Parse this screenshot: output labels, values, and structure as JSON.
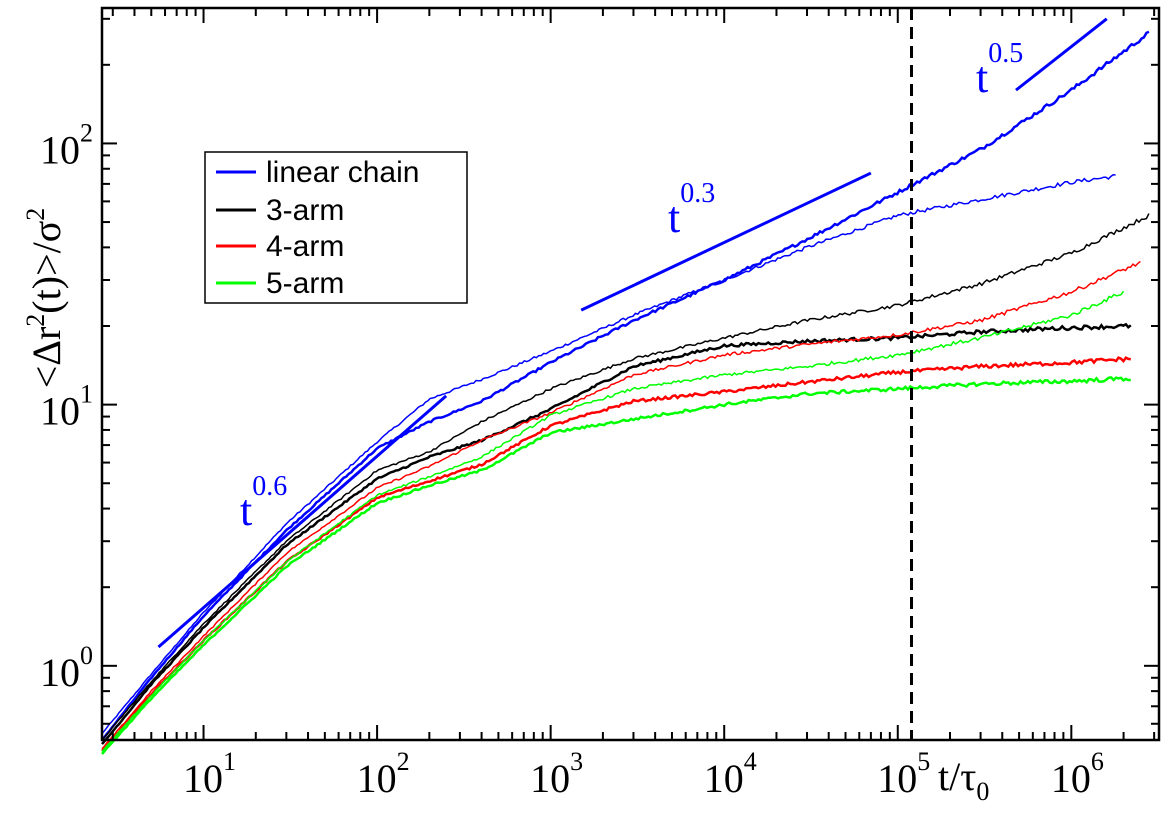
{
  "chart_data": {
    "type": "line",
    "xscale": "log",
    "yscale": "log",
    "xlim": [
      2.6,
      3200000
    ],
    "ylim": [
      0.52,
      330
    ],
    "ylabel": "<Δr²(t)>/σ²",
    "xlabel": "t/τ₀",
    "x_ticks": [
      {
        "base": "10",
        "exp": "1",
        "value": 10
      },
      {
        "base": "10",
        "exp": "2",
        "value": 100
      },
      {
        "base": "10",
        "exp": "3",
        "value": 1000
      },
      {
        "base": "10",
        "exp": "4",
        "value": 10000
      },
      {
        "base": "10",
        "exp": "5",
        "value": 100000
      },
      {
        "base": "10",
        "exp": "6",
        "value": 1000000
      }
    ],
    "y_ticks": [
      {
        "base": "10",
        "exp": "0",
        "value": 1
      },
      {
        "base": "10",
        "exp": "1",
        "value": 10
      },
      {
        "base": "10",
        "exp": "2",
        "value": 100
      }
    ],
    "axis_label": {
      "y_parts": [
        "<Δr",
        "2",
        "(t)>/σ",
        "2"
      ],
      "x_parts": [
        "t/τ",
        "0"
      ]
    },
    "legend": {
      "placement": "upper-left",
      "entries": [
        {
          "label": "linear chain",
          "color": "#0000ff"
        },
        {
          "label": "3-arm",
          "color": "#000000"
        },
        {
          "label": "4-arm",
          "color": "#ff0000"
        },
        {
          "label": "5-arm",
          "color": "#00ff00"
        }
      ]
    },
    "vertical_line": {
      "x": 120000,
      "style": "dashed",
      "color": "#000000"
    },
    "reference_slopes": [
      {
        "base": "t",
        "exp": "0.6",
        "x": [
          5.5,
          250
        ],
        "y": [
          1.18,
          10.8
        ],
        "color": "#0000ff"
      },
      {
        "base": "t",
        "exp": "0.3",
        "x": [
          1500,
          70000
        ],
        "y": [
          23,
          77
        ],
        "color": "#0000ff"
      },
      {
        "base": "t",
        "exp": "0.5",
        "x": [
          480000,
          1600000
        ],
        "y": [
          160,
          300
        ],
        "color": "#0000ff"
      }
    ],
    "series": [
      {
        "name": "linear chain (thin)",
        "color": "#0000ff",
        "width": 1.5,
        "noise": 0.004,
        "x": [
          2.6,
          5,
          10,
          30,
          100,
          200,
          400,
          1000,
          3000,
          10000,
          30000,
          100000,
          300000,
          1000000,
          1800000
        ],
        "y": [
          0.55,
          0.93,
          1.6,
          3.5,
          7.2,
          10.5,
          12.5,
          16,
          22,
          30,
          40,
          53,
          61,
          71,
          75
        ]
      },
      {
        "name": "linear chain (thick)",
        "color": "#0000ff",
        "width": 2.5,
        "noise": 0.004,
        "x": [
          2.6,
          5,
          10,
          30,
          100,
          200,
          400,
          1000,
          3000,
          10000,
          30000,
          100000,
          300000,
          1000000,
          2800000
        ],
        "y": [
          0.52,
          0.9,
          1.55,
          3.3,
          6.8,
          8.6,
          10.3,
          14.5,
          21,
          30,
          43,
          65,
          95,
          160,
          265
        ]
      },
      {
        "name": "3-arm (thin)",
        "color": "#000000",
        "width": 1.5,
        "noise": 0.004,
        "x": [
          2.6,
          5,
          10,
          30,
          100,
          200,
          400,
          1000,
          3000,
          10000,
          30000,
          100000,
          300000,
          1000000,
          2800000
        ],
        "y": [
          0.52,
          0.87,
          1.45,
          3.0,
          5.6,
          6.6,
          8.6,
          11.5,
          15,
          18,
          21,
          24,
          29,
          38,
          53
        ]
      },
      {
        "name": "3-arm (thick)",
        "color": "#000000",
        "width": 2.5,
        "noise": 0.004,
        "x": [
          2.6,
          5,
          10,
          30,
          100,
          200,
          400,
          1000,
          3000,
          10000,
          30000,
          100000,
          300000,
          1000000,
          2200000
        ],
        "y": [
          0.5,
          0.85,
          1.4,
          2.9,
          5.2,
          6.3,
          7.3,
          9.6,
          14,
          16.8,
          17.5,
          18,
          19,
          19.7,
          20
        ]
      },
      {
        "name": "4-arm (thin)",
        "color": "#ff0000",
        "width": 1.5,
        "noise": 0.004,
        "x": [
          2.6,
          5,
          10,
          30,
          100,
          200,
          400,
          1000,
          3000,
          10000,
          30000,
          100000,
          300000,
          1000000,
          2500000
        ],
        "y": [
          0.48,
          0.8,
          1.3,
          2.7,
          4.8,
          5.8,
          7.3,
          9.3,
          13,
          15.5,
          17,
          18.5,
          21,
          27,
          35
        ]
      },
      {
        "name": "4-arm (thick)",
        "color": "#ff0000",
        "width": 2.5,
        "noise": 0.004,
        "x": [
          2.6,
          5,
          10,
          30,
          100,
          200,
          400,
          1000,
          3000,
          10000,
          30000,
          100000,
          300000,
          1000000,
          2200000
        ],
        "y": [
          0.47,
          0.78,
          1.25,
          2.5,
          4.4,
          5.1,
          5.9,
          8.3,
          10.3,
          11.2,
          12.2,
          13.3,
          14,
          14.5,
          15
        ]
      },
      {
        "name": "5-arm (thin)",
        "color": "#00ff00",
        "width": 1.5,
        "noise": 0.004,
        "x": [
          2.6,
          5,
          10,
          30,
          100,
          200,
          400,
          1000,
          3000,
          10000,
          30000,
          100000,
          300000,
          1000000,
          2000000
        ],
        "y": [
          0.47,
          0.77,
          1.25,
          2.5,
          4.5,
          5.3,
          6.3,
          9.1,
          11.5,
          13,
          14,
          15.5,
          18,
          22,
          27
        ]
      },
      {
        "name": "5-arm (thick)",
        "color": "#00ff00",
        "width": 2.5,
        "noise": 0.004,
        "x": [
          2.6,
          5,
          10,
          30,
          100,
          200,
          400,
          1000,
          3000,
          10000,
          30000,
          100000,
          300000,
          1000000,
          2200000
        ],
        "y": [
          0.46,
          0.75,
          1.2,
          2.4,
          4.2,
          4.9,
          5.6,
          7.8,
          8.8,
          10,
          11,
          11.5,
          12,
          12.3,
          12.6
        ]
      }
    ]
  }
}
